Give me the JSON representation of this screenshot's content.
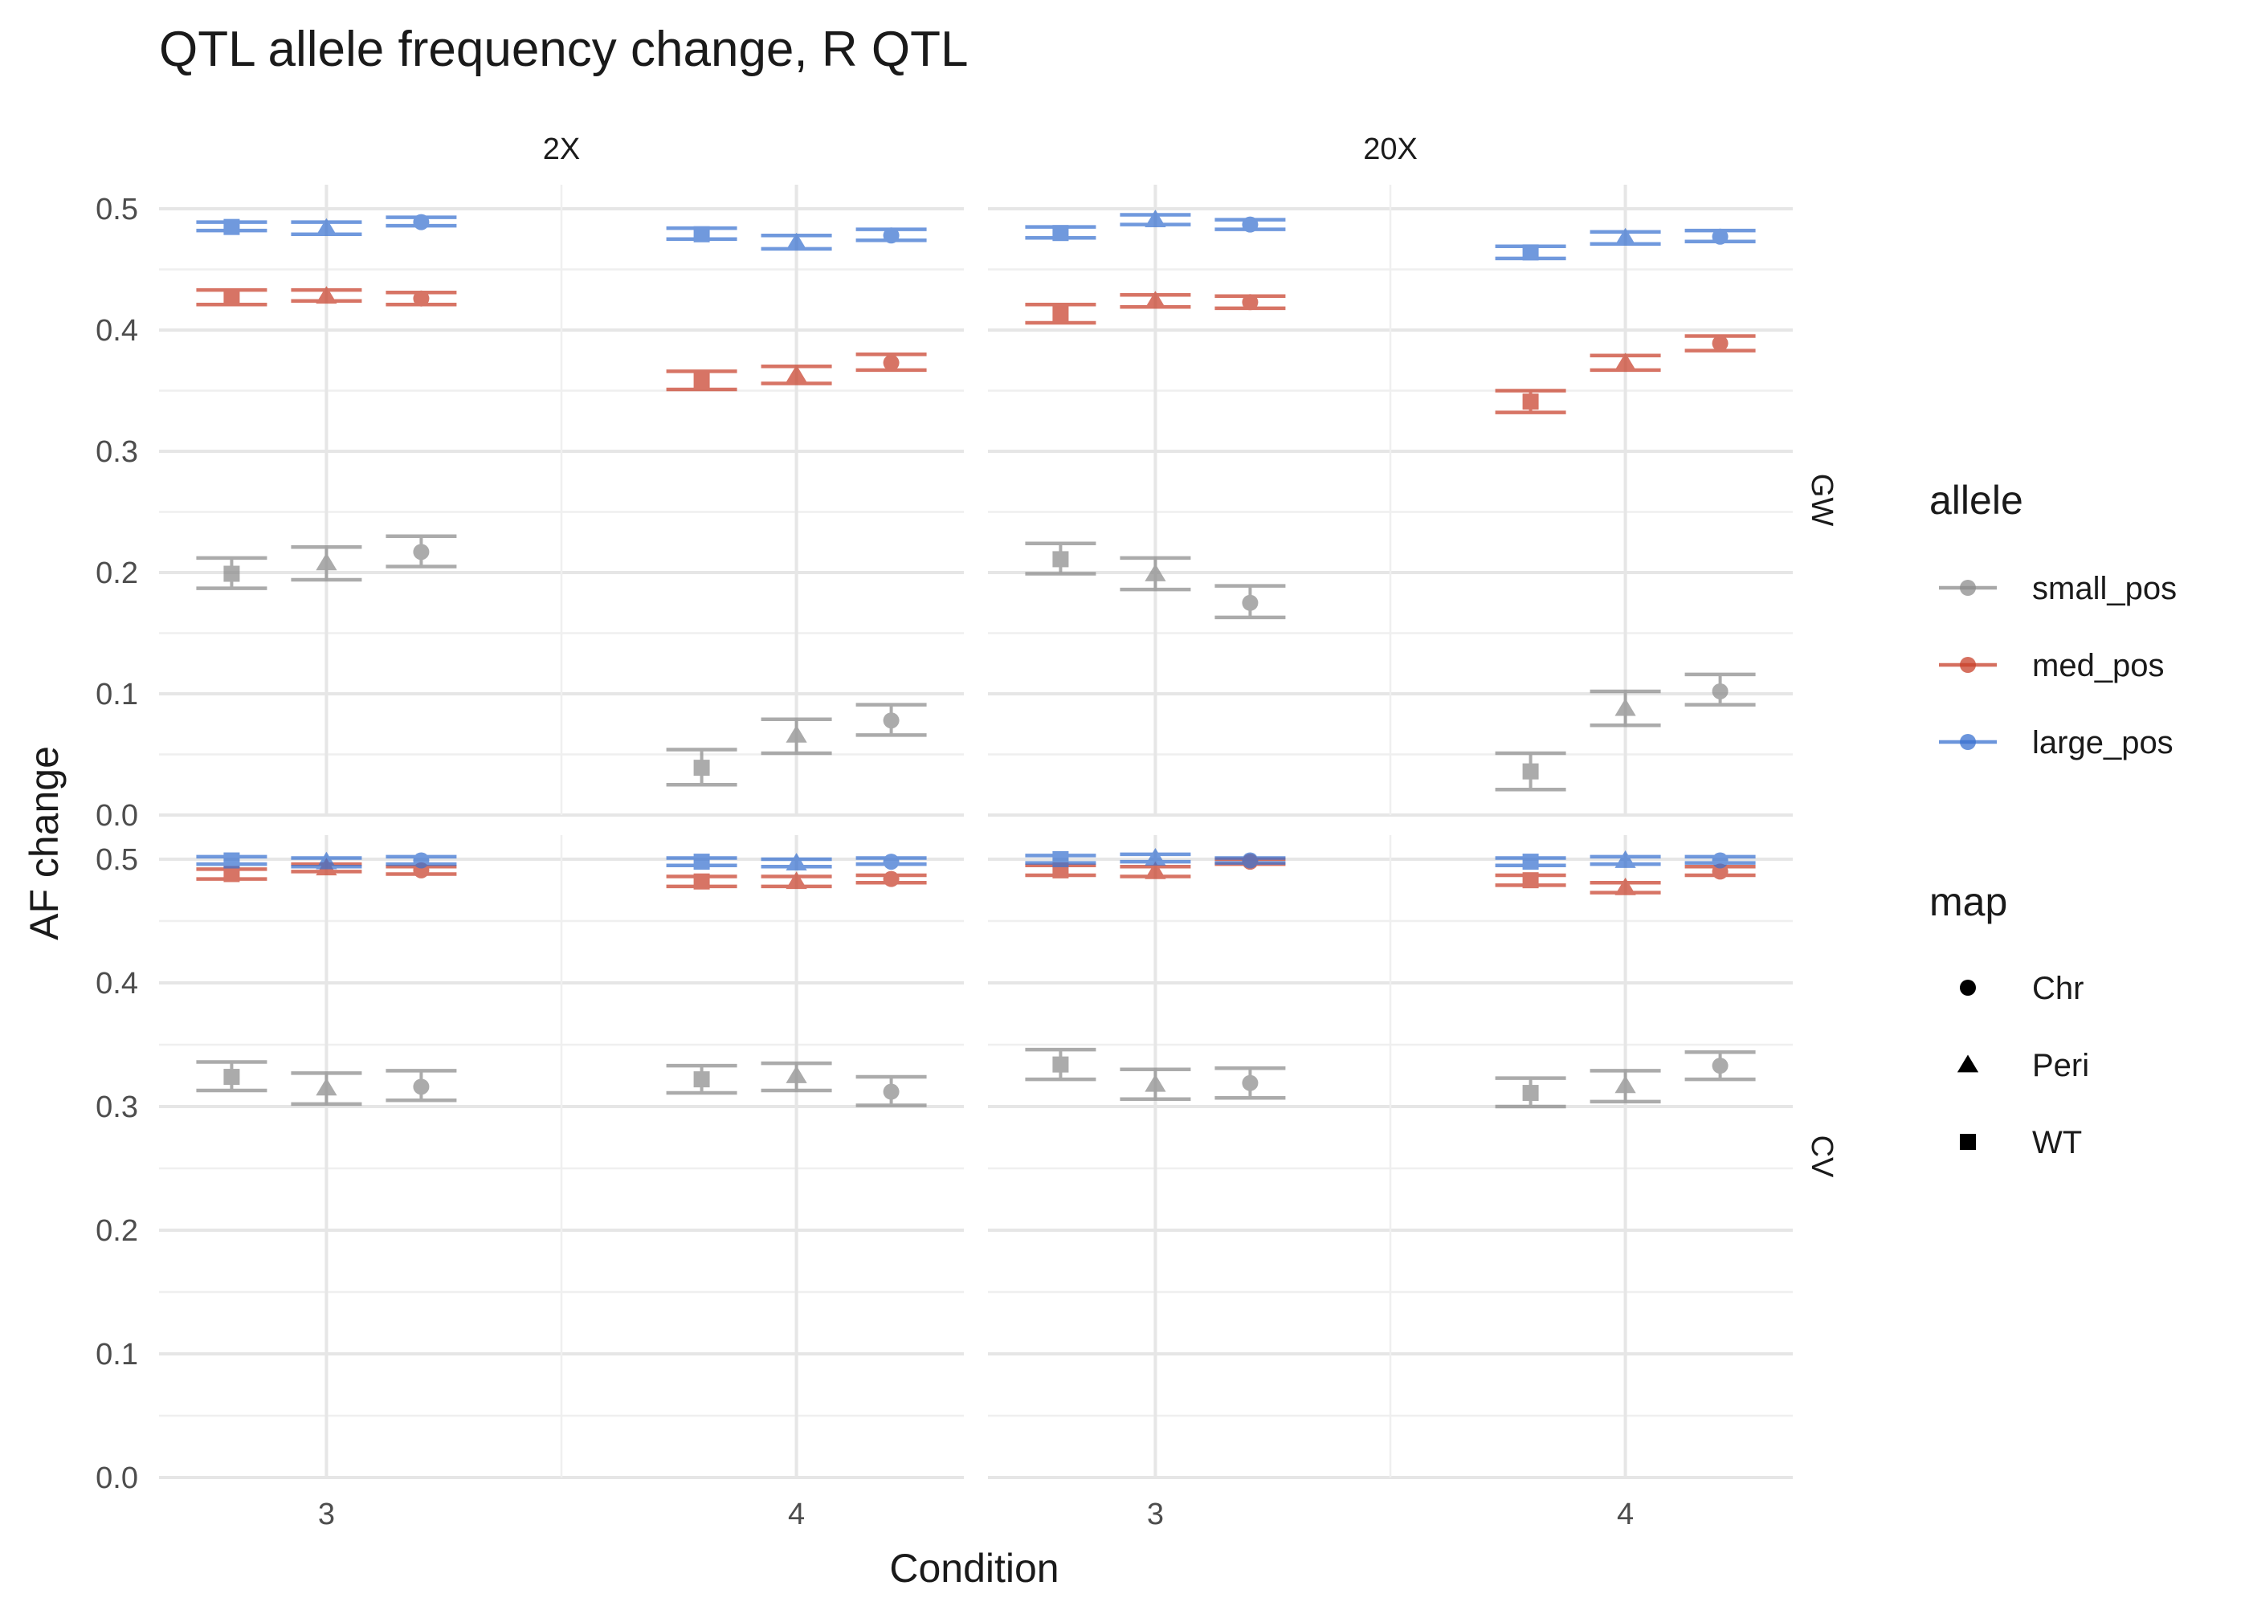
{
  "chart_data": {
    "type": "scatter",
    "title": "QTL allele frequency change, R QTL",
    "xlabel": "Condition",
    "ylabel": "AF change",
    "x_categories": [
      "3",
      "4"
    ],
    "column_facets": [
      "2X",
      "20X"
    ],
    "row_facets": [
      "GW",
      "CV"
    ],
    "ylim": [
      0,
      0.5
    ],
    "y_ticks": [
      "0.0",
      "0.1",
      "0.2",
      "0.3",
      "0.4",
      "0.5"
    ],
    "grid": true,
    "legend_position": "right",
    "legends": {
      "allele": {
        "title": "allele",
        "items": [
          {
            "name": "small_pos",
            "color": "#8c8c8c"
          },
          {
            "name": "med_pos",
            "color": "#c8402a"
          },
          {
            "name": "large_pos",
            "color": "#3a72d0"
          }
        ]
      },
      "map": {
        "title": "map",
        "items": [
          {
            "name": "Chr",
            "shape": "circle"
          },
          {
            "name": "Peri",
            "shape": "triangle"
          },
          {
            "name": "WT",
            "shape": "square"
          }
        ]
      }
    },
    "map_order": [
      "WT",
      "Peri",
      "Chr"
    ],
    "points": [
      {
        "row": "GW",
        "col": "2X",
        "condition": "3",
        "allele": "small_pos",
        "map": "WT",
        "y": 0.199,
        "lo": 0.187,
        "hi": 0.212
      },
      {
        "row": "GW",
        "col": "2X",
        "condition": "3",
        "allele": "small_pos",
        "map": "Peri",
        "y": 0.208,
        "lo": 0.194,
        "hi": 0.221
      },
      {
        "row": "GW",
        "col": "2X",
        "condition": "3",
        "allele": "small_pos",
        "map": "Chr",
        "y": 0.217,
        "lo": 0.205,
        "hi": 0.23
      },
      {
        "row": "GW",
        "col": "2X",
        "condition": "3",
        "allele": "med_pos",
        "map": "WT",
        "y": 0.427,
        "lo": 0.421,
        "hi": 0.433
      },
      {
        "row": "GW",
        "col": "2X",
        "condition": "3",
        "allele": "med_pos",
        "map": "Peri",
        "y": 0.428,
        "lo": 0.424,
        "hi": 0.433
      },
      {
        "row": "GW",
        "col": "2X",
        "condition": "3",
        "allele": "med_pos",
        "map": "Chr",
        "y": 0.426,
        "lo": 0.421,
        "hi": 0.431
      },
      {
        "row": "GW",
        "col": "2X",
        "condition": "3",
        "allele": "large_pos",
        "map": "WT",
        "y": 0.485,
        "lo": 0.482,
        "hi": 0.489
      },
      {
        "row": "GW",
        "col": "2X",
        "condition": "3",
        "allele": "large_pos",
        "map": "Peri",
        "y": 0.484,
        "lo": 0.479,
        "hi": 0.489
      },
      {
        "row": "GW",
        "col": "2X",
        "condition": "3",
        "allele": "large_pos",
        "map": "Chr",
        "y": 0.489,
        "lo": 0.486,
        "hi": 0.493
      },
      {
        "row": "GW",
        "col": "2X",
        "condition": "4",
        "allele": "small_pos",
        "map": "WT",
        "y": 0.039,
        "lo": 0.025,
        "hi": 0.054
      },
      {
        "row": "GW",
        "col": "2X",
        "condition": "4",
        "allele": "small_pos",
        "map": "Peri",
        "y": 0.066,
        "lo": 0.051,
        "hi": 0.079
      },
      {
        "row": "GW",
        "col": "2X",
        "condition": "4",
        "allele": "small_pos",
        "map": "Chr",
        "y": 0.078,
        "lo": 0.066,
        "hi": 0.091
      },
      {
        "row": "GW",
        "col": "2X",
        "condition": "4",
        "allele": "med_pos",
        "map": "WT",
        "y": 0.358,
        "lo": 0.351,
        "hi": 0.366
      },
      {
        "row": "GW",
        "col": "2X",
        "condition": "4",
        "allele": "med_pos",
        "map": "Peri",
        "y": 0.363,
        "lo": 0.356,
        "hi": 0.37
      },
      {
        "row": "GW",
        "col": "2X",
        "condition": "4",
        "allele": "med_pos",
        "map": "Chr",
        "y": 0.373,
        "lo": 0.367,
        "hi": 0.38
      },
      {
        "row": "GW",
        "col": "2X",
        "condition": "4",
        "allele": "large_pos",
        "map": "WT",
        "y": 0.479,
        "lo": 0.475,
        "hi": 0.484
      },
      {
        "row": "GW",
        "col": "2X",
        "condition": "4",
        "allele": "large_pos",
        "map": "Peri",
        "y": 0.472,
        "lo": 0.467,
        "hi": 0.478
      },
      {
        "row": "GW",
        "col": "2X",
        "condition": "4",
        "allele": "large_pos",
        "map": "Chr",
        "y": 0.478,
        "lo": 0.474,
        "hi": 0.483
      },
      {
        "row": "GW",
        "col": "20X",
        "condition": "3",
        "allele": "small_pos",
        "map": "WT",
        "y": 0.211,
        "lo": 0.199,
        "hi": 0.224
      },
      {
        "row": "GW",
        "col": "20X",
        "condition": "3",
        "allele": "small_pos",
        "map": "Peri",
        "y": 0.199,
        "lo": 0.186,
        "hi": 0.212
      },
      {
        "row": "GW",
        "col": "20X",
        "condition": "3",
        "allele": "small_pos",
        "map": "Chr",
        "y": 0.175,
        "lo": 0.163,
        "hi": 0.189
      },
      {
        "row": "GW",
        "col": "20X",
        "condition": "3",
        "allele": "med_pos",
        "map": "WT",
        "y": 0.413,
        "lo": 0.406,
        "hi": 0.421
      },
      {
        "row": "GW",
        "col": "20X",
        "condition": "3",
        "allele": "med_pos",
        "map": "Peri",
        "y": 0.424,
        "lo": 0.419,
        "hi": 0.429
      },
      {
        "row": "GW",
        "col": "20X",
        "condition": "3",
        "allele": "med_pos",
        "map": "Chr",
        "y": 0.423,
        "lo": 0.418,
        "hi": 0.428
      },
      {
        "row": "GW",
        "col": "20X",
        "condition": "3",
        "allele": "large_pos",
        "map": "WT",
        "y": 0.48,
        "lo": 0.476,
        "hi": 0.485
      },
      {
        "row": "GW",
        "col": "20X",
        "condition": "3",
        "allele": "large_pos",
        "map": "Peri",
        "y": 0.491,
        "lo": 0.487,
        "hi": 0.495
      },
      {
        "row": "GW",
        "col": "20X",
        "condition": "3",
        "allele": "large_pos",
        "map": "Chr",
        "y": 0.487,
        "lo": 0.483,
        "hi": 0.491
      },
      {
        "row": "GW",
        "col": "20X",
        "condition": "4",
        "allele": "small_pos",
        "map": "WT",
        "y": 0.036,
        "lo": 0.021,
        "hi": 0.051
      },
      {
        "row": "GW",
        "col": "20X",
        "condition": "4",
        "allele": "small_pos",
        "map": "Peri",
        "y": 0.088,
        "lo": 0.074,
        "hi": 0.102
      },
      {
        "row": "GW",
        "col": "20X",
        "condition": "4",
        "allele": "small_pos",
        "map": "Chr",
        "y": 0.102,
        "lo": 0.091,
        "hi": 0.116
      },
      {
        "row": "GW",
        "col": "20X",
        "condition": "4",
        "allele": "med_pos",
        "map": "WT",
        "y": 0.341,
        "lo": 0.332,
        "hi": 0.35
      },
      {
        "row": "GW",
        "col": "20X",
        "condition": "4",
        "allele": "med_pos",
        "map": "Peri",
        "y": 0.373,
        "lo": 0.367,
        "hi": 0.379
      },
      {
        "row": "GW",
        "col": "20X",
        "condition": "4",
        "allele": "med_pos",
        "map": "Chr",
        "y": 0.389,
        "lo": 0.383,
        "hi": 0.395
      },
      {
        "row": "GW",
        "col": "20X",
        "condition": "4",
        "allele": "large_pos",
        "map": "WT",
        "y": 0.464,
        "lo": 0.459,
        "hi": 0.469
      },
      {
        "row": "GW",
        "col": "20X",
        "condition": "4",
        "allele": "large_pos",
        "map": "Peri",
        "y": 0.476,
        "lo": 0.471,
        "hi": 0.481
      },
      {
        "row": "GW",
        "col": "20X",
        "condition": "4",
        "allele": "large_pos",
        "map": "Chr",
        "y": 0.477,
        "lo": 0.473,
        "hi": 0.482
      },
      {
        "row": "CV",
        "col": "2X",
        "condition": "3",
        "allele": "small_pos",
        "map": "WT",
        "y": 0.324,
        "lo": 0.313,
        "hi": 0.336
      },
      {
        "row": "CV",
        "col": "2X",
        "condition": "3",
        "allele": "small_pos",
        "map": "Peri",
        "y": 0.315,
        "lo": 0.302,
        "hi": 0.327
      },
      {
        "row": "CV",
        "col": "2X",
        "condition": "3",
        "allele": "small_pos",
        "map": "Chr",
        "y": 0.316,
        "lo": 0.305,
        "hi": 0.329
      },
      {
        "row": "CV",
        "col": "2X",
        "condition": "3",
        "allele": "med_pos",
        "map": "WT",
        "y": 0.488,
        "lo": 0.484,
        "hi": 0.492
      },
      {
        "row": "CV",
        "col": "2X",
        "condition": "3",
        "allele": "med_pos",
        "map": "Peri",
        "y": 0.493,
        "lo": 0.49,
        "hi": 0.496
      },
      {
        "row": "CV",
        "col": "2X",
        "condition": "3",
        "allele": "med_pos",
        "map": "Chr",
        "y": 0.491,
        "lo": 0.488,
        "hi": 0.494
      },
      {
        "row": "CV",
        "col": "2X",
        "condition": "3",
        "allele": "large_pos",
        "map": "WT",
        "y": 0.499,
        "lo": 0.496,
        "hi": 0.502
      },
      {
        "row": "CV",
        "col": "2X",
        "condition": "3",
        "allele": "large_pos",
        "map": "Peri",
        "y": 0.498,
        "lo": 0.494,
        "hi": 0.501
      },
      {
        "row": "CV",
        "col": "2X",
        "condition": "3",
        "allele": "large_pos",
        "map": "Chr",
        "y": 0.499,
        "lo": 0.496,
        "hi": 0.502
      },
      {
        "row": "CV",
        "col": "2X",
        "condition": "4",
        "allele": "small_pos",
        "map": "WT",
        "y": 0.322,
        "lo": 0.311,
        "hi": 0.333
      },
      {
        "row": "CV",
        "col": "2X",
        "condition": "4",
        "allele": "small_pos",
        "map": "Peri",
        "y": 0.325,
        "lo": 0.313,
        "hi": 0.335
      },
      {
        "row": "CV",
        "col": "2X",
        "condition": "4",
        "allele": "small_pos",
        "map": "Chr",
        "y": 0.312,
        "lo": 0.301,
        "hi": 0.324
      },
      {
        "row": "CV",
        "col": "2X",
        "condition": "4",
        "allele": "med_pos",
        "map": "WT",
        "y": 0.482,
        "lo": 0.478,
        "hi": 0.486
      },
      {
        "row": "CV",
        "col": "2X",
        "condition": "4",
        "allele": "med_pos",
        "map": "Peri",
        "y": 0.482,
        "lo": 0.478,
        "hi": 0.486
      },
      {
        "row": "CV",
        "col": "2X",
        "condition": "4",
        "allele": "med_pos",
        "map": "Chr",
        "y": 0.484,
        "lo": 0.481,
        "hi": 0.487
      },
      {
        "row": "CV",
        "col": "2X",
        "condition": "4",
        "allele": "large_pos",
        "map": "WT",
        "y": 0.498,
        "lo": 0.495,
        "hi": 0.501
      },
      {
        "row": "CV",
        "col": "2X",
        "condition": "4",
        "allele": "large_pos",
        "map": "Peri",
        "y": 0.497,
        "lo": 0.494,
        "hi": 0.5
      },
      {
        "row": "CV",
        "col": "2X",
        "condition": "4",
        "allele": "large_pos",
        "map": "Chr",
        "y": 0.498,
        "lo": 0.496,
        "hi": 0.501
      },
      {
        "row": "CV",
        "col": "20X",
        "condition": "3",
        "allele": "small_pos",
        "map": "WT",
        "y": 0.334,
        "lo": 0.322,
        "hi": 0.346
      },
      {
        "row": "CV",
        "col": "20X",
        "condition": "3",
        "allele": "small_pos",
        "map": "Peri",
        "y": 0.318,
        "lo": 0.306,
        "hi": 0.33
      },
      {
        "row": "CV",
        "col": "20X",
        "condition": "3",
        "allele": "small_pos",
        "map": "Chr",
        "y": 0.319,
        "lo": 0.307,
        "hi": 0.331
      },
      {
        "row": "CV",
        "col": "20X",
        "condition": "3",
        "allele": "med_pos",
        "map": "WT",
        "y": 0.491,
        "lo": 0.487,
        "hi": 0.495
      },
      {
        "row": "CV",
        "col": "20X",
        "condition": "3",
        "allele": "med_pos",
        "map": "Peri",
        "y": 0.49,
        "lo": 0.486,
        "hi": 0.494
      },
      {
        "row": "CV",
        "col": "20X",
        "condition": "3",
        "allele": "med_pos",
        "map": "Chr",
        "y": 0.498,
        "lo": 0.496,
        "hi": 0.5
      },
      {
        "row": "CV",
        "col": "20X",
        "condition": "3",
        "allele": "large_pos",
        "map": "WT",
        "y": 0.5,
        "lo": 0.497,
        "hi": 0.503
      },
      {
        "row": "CV",
        "col": "20X",
        "condition": "3",
        "allele": "large_pos",
        "map": "Peri",
        "y": 0.501,
        "lo": 0.498,
        "hi": 0.504
      },
      {
        "row": "CV",
        "col": "20X",
        "condition": "3",
        "allele": "large_pos",
        "map": "Chr",
        "y": 0.499,
        "lo": 0.497,
        "hi": 0.501
      },
      {
        "row": "CV",
        "col": "20X",
        "condition": "4",
        "allele": "small_pos",
        "map": "WT",
        "y": 0.311,
        "lo": 0.3,
        "hi": 0.323
      },
      {
        "row": "CV",
        "col": "20X",
        "condition": "4",
        "allele": "small_pos",
        "map": "Peri",
        "y": 0.317,
        "lo": 0.304,
        "hi": 0.329
      },
      {
        "row": "CV",
        "col": "20X",
        "condition": "4",
        "allele": "small_pos",
        "map": "Chr",
        "y": 0.333,
        "lo": 0.322,
        "hi": 0.344
      },
      {
        "row": "CV",
        "col": "20X",
        "condition": "4",
        "allele": "med_pos",
        "map": "WT",
        "y": 0.483,
        "lo": 0.479,
        "hi": 0.487
      },
      {
        "row": "CV",
        "col": "20X",
        "condition": "4",
        "allele": "med_pos",
        "map": "Peri",
        "y": 0.477,
        "lo": 0.473,
        "hi": 0.481
      },
      {
        "row": "CV",
        "col": "20X",
        "condition": "4",
        "allele": "med_pos",
        "map": "Chr",
        "y": 0.49,
        "lo": 0.487,
        "hi": 0.494
      },
      {
        "row": "CV",
        "col": "20X",
        "condition": "4",
        "allele": "large_pos",
        "map": "WT",
        "y": 0.498,
        "lo": 0.495,
        "hi": 0.501
      },
      {
        "row": "CV",
        "col": "20X",
        "condition": "4",
        "allele": "large_pos",
        "map": "Peri",
        "y": 0.499,
        "lo": 0.496,
        "hi": 0.502
      },
      {
        "row": "CV",
        "col": "20X",
        "condition": "4",
        "allele": "large_pos",
        "map": "Chr",
        "y": 0.499,
        "lo": 0.497,
        "hi": 0.502
      }
    ]
  }
}
